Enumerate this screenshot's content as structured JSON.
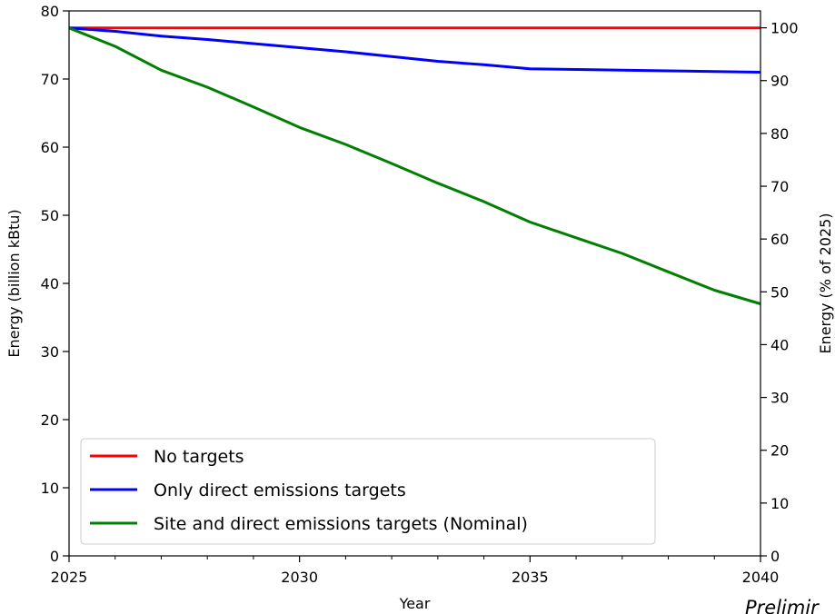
{
  "chart_data": {
    "type": "line",
    "xlabel": "Year",
    "ylabel": "Energy (billion kBtu)",
    "ylabel_right": "Energy (% of 2025)",
    "xlim": [
      2025,
      2040
    ],
    "ylim": [
      0,
      80
    ],
    "ylim_right": [
      0,
      103.2
    ],
    "x_ticks": [
      2025,
      2030,
      2035,
      2040
    ],
    "x_minor_ticks": [
      2026,
      2027,
      2028,
      2029,
      2031,
      2032,
      2033,
      2034,
      2036,
      2037,
      2038,
      2039
    ],
    "y_ticks": [
      0,
      10,
      20,
      30,
      40,
      50,
      60,
      70,
      80
    ],
    "y_ticks_right": [
      0,
      10,
      20,
      30,
      40,
      50,
      60,
      70,
      80,
      90,
      100
    ],
    "grid": false,
    "legend_position": "lower-left",
    "x": [
      2025,
      2026,
      2027,
      2028,
      2029,
      2030,
      2031,
      2032,
      2033,
      2034,
      2035,
      2036,
      2037,
      2038,
      2039,
      2040
    ],
    "series": [
      {
        "name": "No targets",
        "color": "#ff0000",
        "values": [
          77.5,
          77.5,
          77.5,
          77.5,
          77.5,
          77.5,
          77.5,
          77.5,
          77.5,
          77.5,
          77.5,
          77.5,
          77.5,
          77.5,
          77.5,
          77.5
        ]
      },
      {
        "name": "Only direct emissions targets",
        "color": "#0000ff",
        "values": [
          77.5,
          77.0,
          76.3,
          75.8,
          75.2,
          74.6,
          74.0,
          73.3,
          72.6,
          72.1,
          71.5,
          71.4,
          71.3,
          71.2,
          71.1,
          71.0
        ]
      },
      {
        "name": "Site and direct emissions targets (Nominal)",
        "color": "#008000",
        "values": [
          77.5,
          74.8,
          71.3,
          68.8,
          65.9,
          62.9,
          60.4,
          57.6,
          54.7,
          52.0,
          49.0,
          46.7,
          44.4,
          41.7,
          39.0,
          37.0
        ]
      }
    ]
  },
  "watermark": {
    "text": "Prelimir",
    "color": "#ff0000"
  }
}
